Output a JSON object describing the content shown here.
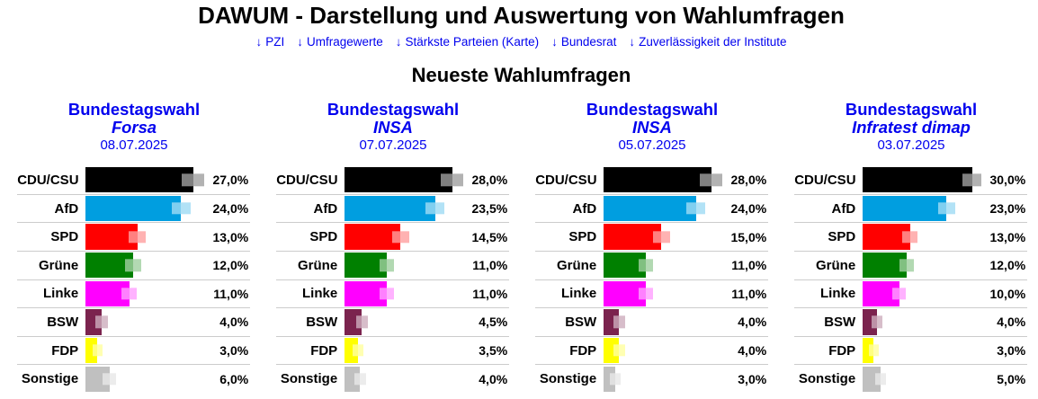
{
  "page": {
    "title": "DAWUM - Darstellung und Auswertung von Wahlumfragen"
  },
  "nav": {
    "arrow": "↓",
    "links": [
      {
        "label": "PZI"
      },
      {
        "label": "Umfragewerte"
      },
      {
        "label": "Stärkste Parteien (Karte)"
      },
      {
        "label": "Bundesrat"
      },
      {
        "label": "Zuverlässigkeit der Institute"
      }
    ]
  },
  "section": {
    "title": "Neueste Wahlumfragen"
  },
  "party_colors": {
    "CDU/CSU": "#000000",
    "AfD": "#009EE0",
    "SPD": "#FF0000",
    "Grüne": "#008000",
    "Linke": "#FF00FF",
    "BSW": "#7B234E",
    "FDP": "#FFFF00",
    "Sonstige": "#C0C0C0"
  },
  "ui_colors": {
    "link_blue": "#0000EE",
    "heading_black": "#000000",
    "row_separator": "#CCCCCC",
    "background": "#FFFFFF"
  },
  "chart_data": [
    {
      "type": "bar",
      "orientation": "horizontal",
      "title": "Bundestagswahl",
      "institute": "Forsa",
      "date": "08.07.2025",
      "legend": "none",
      "grid": "off",
      "bar_normalization": "largest value plus its error margin fills the bar area",
      "categories": [
        "CDU/CSU",
        "AfD",
        "SPD",
        "Grüne",
        "Linke",
        "BSW",
        "FDP",
        "Sonstige"
      ],
      "values": [
        27.0,
        24.0,
        13.0,
        12.0,
        11.0,
        4.0,
        3.0,
        6.0
      ],
      "value_labels": [
        "27,0%",
        "24,0%",
        "13,0%",
        "12,0%",
        "11,0%",
        "4,0%",
        "3,0%",
        "6,0%"
      ],
      "error_margins": [
        2.8,
        2.4,
        2.1,
        2.0,
        1.9,
        1.5,
        1.3,
        1.7
      ]
    },
    {
      "type": "bar",
      "orientation": "horizontal",
      "title": "Bundestagswahl",
      "institute": "INSA",
      "date": "07.07.2025",
      "legend": "none",
      "grid": "off",
      "bar_normalization": "largest value plus its error margin fills the bar area",
      "categories": [
        "CDU/CSU",
        "AfD",
        "SPD",
        "Grüne",
        "Linke",
        "BSW",
        "FDP",
        "Sonstige"
      ],
      "values": [
        28.0,
        23.5,
        14.5,
        11.0,
        11.0,
        4.5,
        3.5,
        4.0
      ],
      "value_labels": [
        "28,0%",
        "23,5%",
        "14,5%",
        "11,0%",
        "11,0%",
        "4,5%",
        "3,5%",
        "4,0%"
      ],
      "error_margins": [
        2.9,
        2.4,
        2.2,
        1.9,
        1.9,
        1.5,
        1.4,
        1.5
      ]
    },
    {
      "type": "bar",
      "orientation": "horizontal",
      "title": "Bundestagswahl",
      "institute": "INSA",
      "date": "05.07.2025",
      "legend": "none",
      "grid": "off",
      "bar_normalization": "largest value plus its error margin fills the bar area",
      "categories": [
        "CDU/CSU",
        "AfD",
        "SPD",
        "Grüne",
        "Linke",
        "BSW",
        "FDP",
        "Sonstige"
      ],
      "values": [
        28.0,
        24.0,
        15.0,
        11.0,
        11.0,
        4.0,
        4.0,
        3.0
      ],
      "value_labels": [
        "28,0%",
        "24,0%",
        "15,0%",
        "11,0%",
        "11,0%",
        "4,0%",
        "4,0%",
        "3,0%"
      ],
      "error_margins": [
        2.9,
        2.4,
        2.2,
        1.9,
        1.9,
        1.5,
        1.5,
        1.3
      ]
    },
    {
      "type": "bar",
      "orientation": "horizontal",
      "title": "Bundestagswahl",
      "institute": "Infratest dimap",
      "date": "03.07.2025",
      "legend": "none",
      "grid": "off",
      "bar_normalization": "largest value plus its error margin fills the bar area",
      "categories": [
        "CDU/CSU",
        "AfD",
        "SPD",
        "Grüne",
        "Linke",
        "BSW",
        "FDP",
        "Sonstige"
      ],
      "values": [
        30.0,
        23.0,
        13.0,
        12.0,
        10.0,
        4.0,
        3.0,
        5.0
      ],
      "value_labels": [
        "30,0%",
        "23,0%",
        "13,0%",
        "12,0%",
        "10,0%",
        "4,0%",
        "3,0%",
        "5,0%"
      ],
      "error_margins": [
        2.6,
        2.4,
        2.1,
        2.0,
        1.8,
        1.5,
        1.3,
        1.5
      ]
    }
  ]
}
